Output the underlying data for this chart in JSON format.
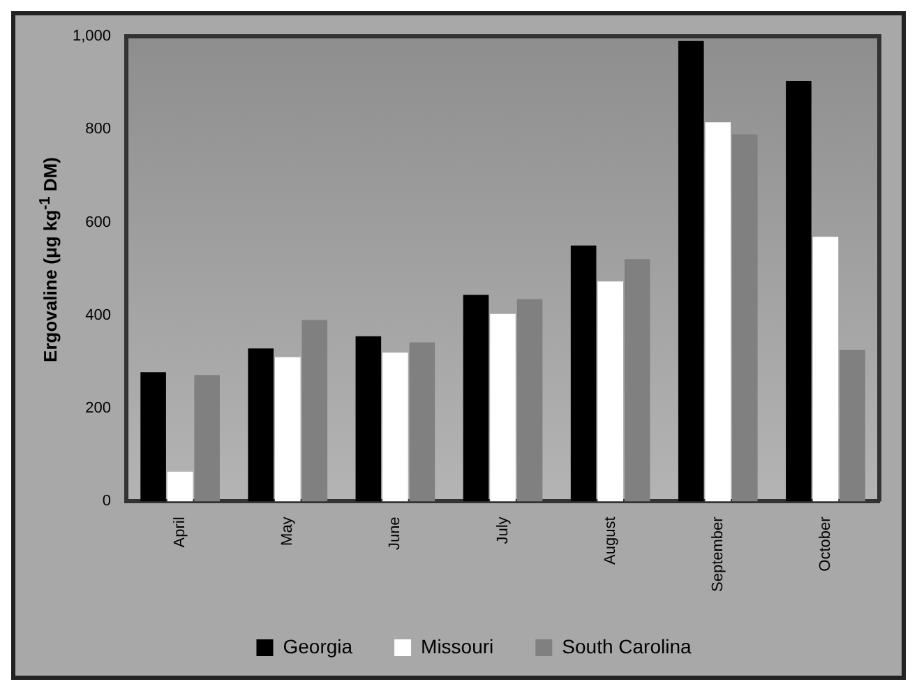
{
  "chart_data": {
    "type": "bar",
    "ylabel": "Ergovaline (μg kg$^{-1}$ DM)",
    "categories": [
      "April",
      "May",
      "June",
      "July",
      "August",
      "September",
      "October"
    ],
    "series": [
      {
        "name": "Georgia",
        "color": "#000000",
        "values": [
          278,
          329,
          355,
          444,
          550,
          990,
          904
        ]
      },
      {
        "name": "Missouri",
        "color": "#ffffff",
        "values": [
          64,
          310,
          320,
          403,
          473,
          815,
          569
        ]
      },
      {
        "name": "South Carolina",
        "color": "#808080",
        "values": [
          272,
          390,
          342,
          435,
          521,
          789,
          326
        ]
      }
    ],
    "ylim": [
      0,
      1000
    ],
    "yticks": [
      0,
      200,
      400,
      600,
      800,
      {
        "value": 1000,
        "label": "1,000"
      }
    ],
    "grid": false,
    "legend": "bottom"
  }
}
